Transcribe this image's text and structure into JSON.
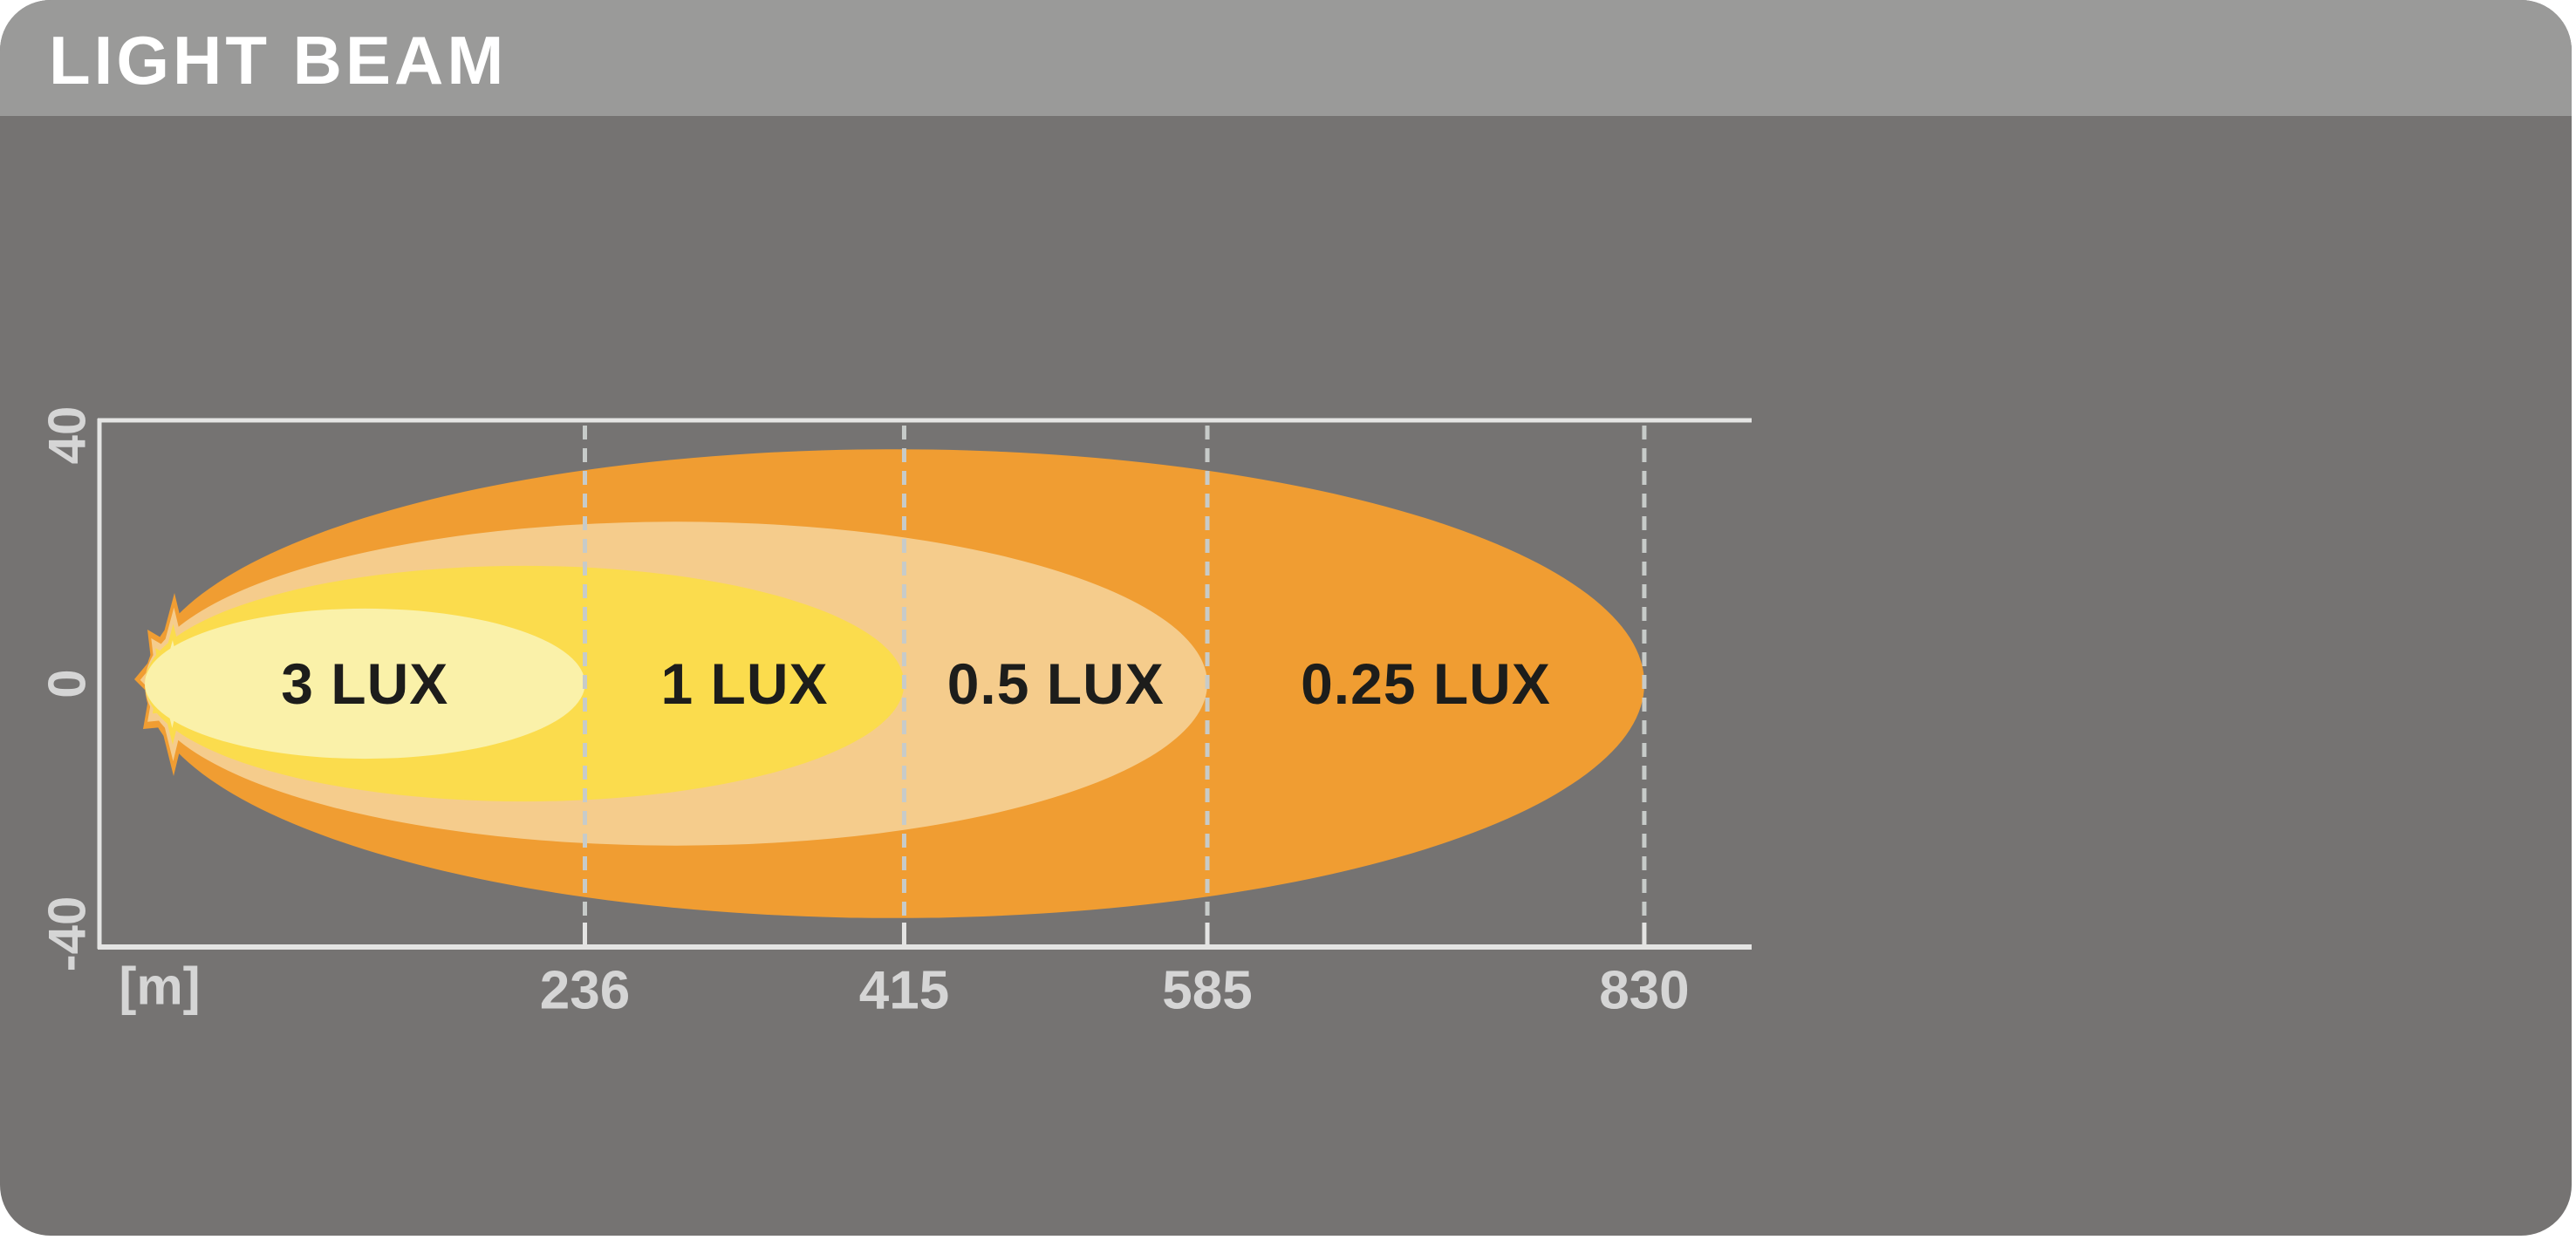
{
  "header": {
    "title": "LIGHT BEAM"
  },
  "axis": {
    "unit_label": "[m]",
    "y_tick_labels": [
      "40",
      "0",
      "-40"
    ],
    "x_tick_labels": [
      "236",
      "415",
      "585",
      "830"
    ]
  },
  "colors": {
    "header_bg": "#9A9A99",
    "body_bg": "#757372",
    "title_text": "#FFFFFF",
    "frame": "#E4E4E3",
    "grid_dash": "#C7CBC9",
    "tick_text": "#D5D5D5",
    "label_text": "#1D1D1B",
    "lux_3": "#FAF1A9",
    "lux_1": "#FBDC4D",
    "lux_05": "#F5CC8C",
    "lux_025": "#F09D32"
  },
  "chart_data": {
    "type": "area",
    "title": "LIGHT BEAM",
    "xlabel": "[m]",
    "ylabel": "",
    "x_unit": "m",
    "x_ticks": [
      236,
      415,
      585,
      830
    ],
    "y_ticks": [
      40,
      0,
      -40
    ],
    "ylim": [
      -40,
      40
    ],
    "grid": "dashed vertical lines at each x tick",
    "legend_position": "labels inside zones",
    "zones": [
      {
        "label": "3 LUX",
        "lux": 3,
        "reach_m": 236,
        "beam_half_width_m": 11.4,
        "color": "#FAF1A9"
      },
      {
        "label": "1 LUX",
        "lux": 1,
        "reach_m": 415,
        "beam_half_width_m": 17.9,
        "color": "#FBDC4D"
      },
      {
        "label": "0.5 LUX",
        "lux": 0.5,
        "reach_m": 585,
        "beam_half_width_m": 24.6,
        "color": "#F5CC8C"
      },
      {
        "label": "0.25 LUX",
        "lux": 0.25,
        "reach_m": 830,
        "beam_half_width_m": 35.6,
        "color": "#F09D32"
      }
    ]
  }
}
